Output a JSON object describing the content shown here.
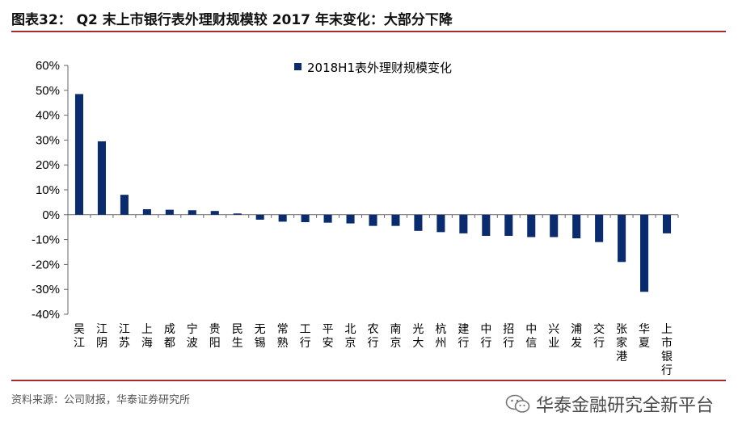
{
  "figure": {
    "title": "图表32：  Q2 末上市银行表外理财规模较 2017 年末变化：大部分下降",
    "source": "资料来源：公司财报，华泰证券研究所",
    "watermark": "华泰金融研究全新平台",
    "accent_color": "#a72b2e"
  },
  "chart_data": {
    "type": "bar",
    "categories": [
      "吴江",
      "江阴",
      "江苏",
      "上海",
      "成都",
      "宁波",
      "贵阳",
      "民生",
      "无锡",
      "常熟",
      "工行",
      "平安",
      "北京",
      "农行",
      "南京",
      "光大",
      "杭州",
      "建行",
      "中行",
      "招行",
      "中信",
      "兴业",
      "浦发",
      "交行",
      "张家港",
      "华夏",
      "上市银行"
    ],
    "series": [
      {
        "name": "2018H1表外理财规模变化",
        "color": "#0a2c6e",
        "values": [
          48.5,
          29.5,
          8.0,
          2.2,
          2.0,
          1.8,
          1.5,
          0.5,
          -2.0,
          -2.8,
          -3.0,
          -3.2,
          -3.5,
          -4.5,
          -4.5,
          -6.5,
          -7.0,
          -7.5,
          -8.5,
          -8.5,
          -9.0,
          -9.0,
          -9.5,
          -11.0,
          -19.0,
          -31.0,
          -7.5
        ]
      }
    ],
    "ylim": [
      -40,
      60
    ],
    "yticks": [
      -40,
      -30,
      -20,
      -10,
      0,
      10,
      20,
      30,
      40,
      50,
      60
    ],
    "tick_suffix": "%",
    "legend_position": "top",
    "grid": false
  }
}
